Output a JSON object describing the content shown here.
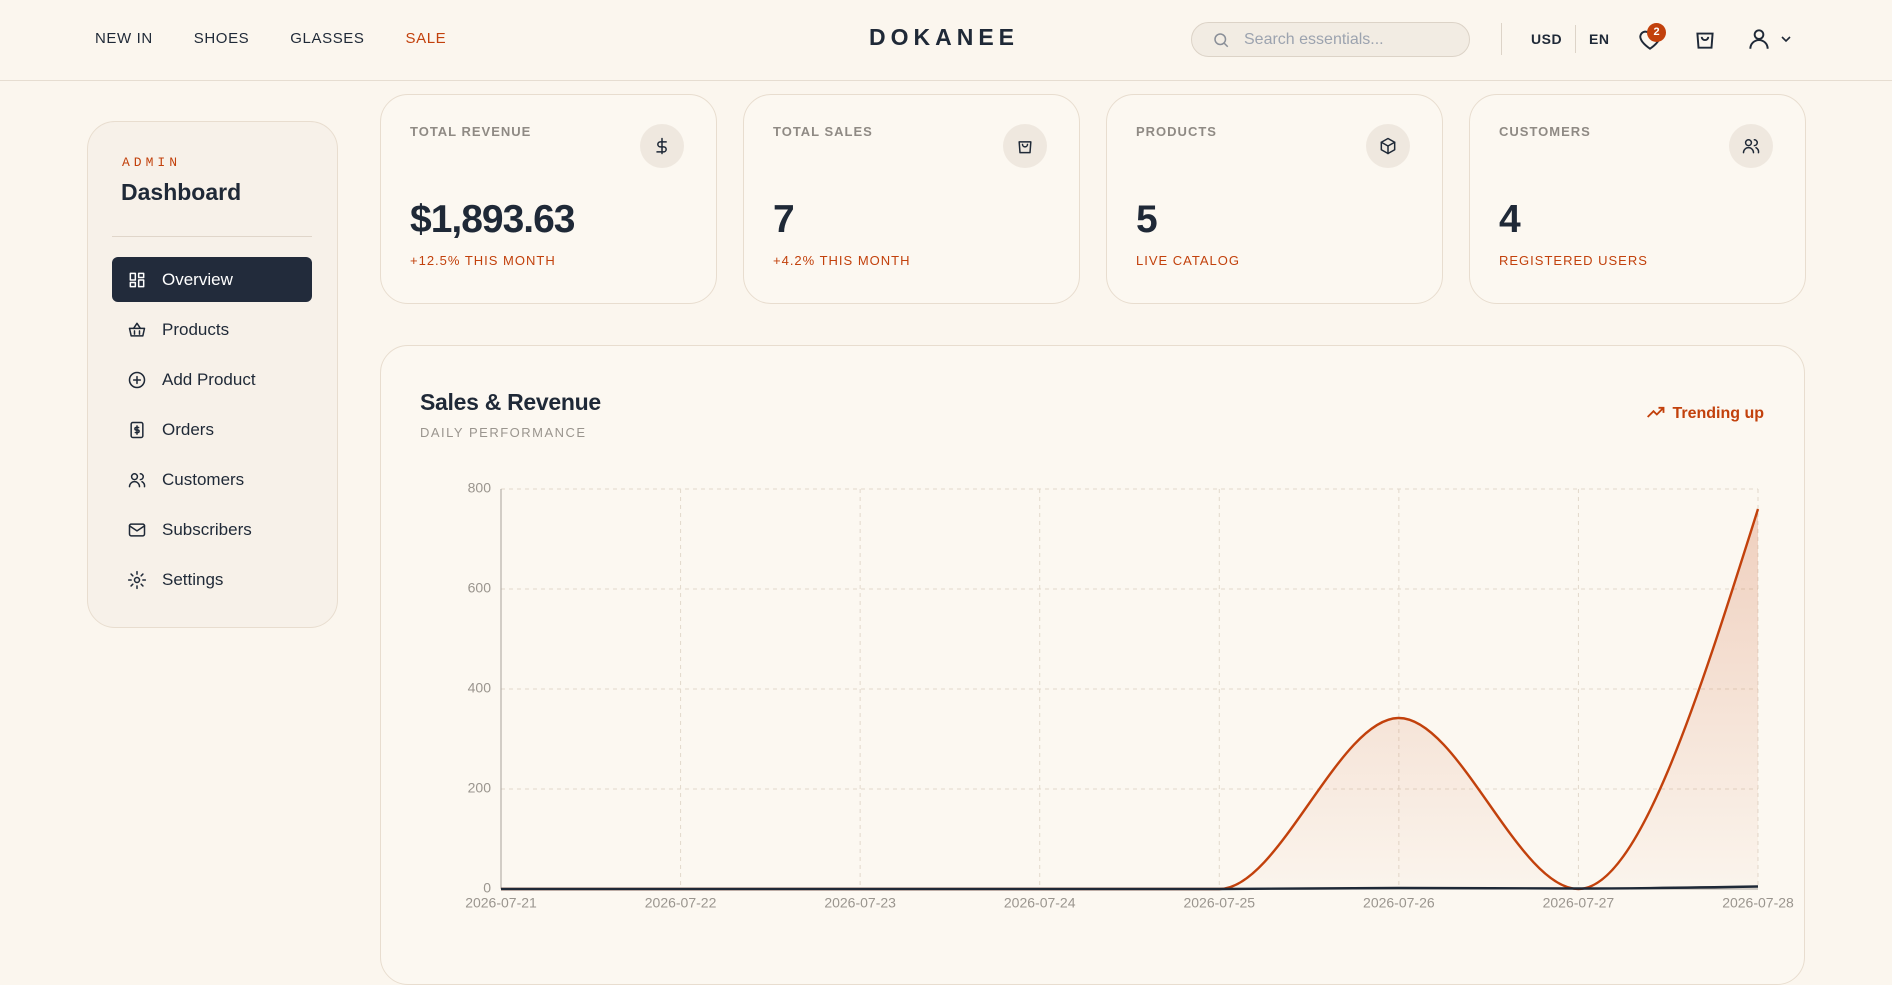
{
  "header": {
    "nav": [
      "NEW IN",
      "SHOES",
      "GLASSES",
      "SALE"
    ],
    "logo": "DOKANEE",
    "search_placeholder": "Search essentials...",
    "currency": "USD",
    "language": "EN",
    "wishlist_count": "2"
  },
  "sidebar": {
    "eyebrow": "ADMIN",
    "title": "Dashboard",
    "menu": [
      {
        "label": "Overview",
        "active": true
      },
      {
        "label": "Products"
      },
      {
        "label": "Add Product"
      },
      {
        "label": "Orders"
      },
      {
        "label": "Customers"
      },
      {
        "label": "Subscribers"
      },
      {
        "label": "Settings"
      }
    ]
  },
  "stats": [
    {
      "label": "TOTAL REVENUE",
      "value": "$1,893.63",
      "note": "+12.5% THIS MONTH"
    },
    {
      "label": "TOTAL SALES",
      "value": "7",
      "note": "+4.2% THIS MONTH"
    },
    {
      "label": "PRODUCTS",
      "value": "5",
      "note": "LIVE CATALOG"
    },
    {
      "label": "CUSTOMERS",
      "value": "4",
      "note": "REGISTERED USERS"
    }
  ],
  "chart_panel": {
    "title": "Sales & Revenue",
    "subtitle": "DAILY PERFORMANCE",
    "badge": "Trending up",
    "chart": {
      "type": "line",
      "x": [
        "2026-07-21",
        "2026-07-22",
        "2026-07-23",
        "2026-07-24",
        "2026-07-25",
        "2026-07-26",
        "2026-07-27",
        "2026-07-28"
      ],
      "series": [
        {
          "color": "#c2410c",
          "area": true,
          "values": [
            0,
            0,
            0,
            0,
            0,
            342,
            0,
            760
          ]
        },
        {
          "color": "#1f2937",
          "values": [
            0,
            0,
            0,
            0,
            0,
            2,
            1,
            5
          ]
        }
      ],
      "ylim": [
        0,
        800
      ],
      "yticks": [
        0,
        200,
        400,
        600,
        800
      ],
      "grid": true
    }
  }
}
